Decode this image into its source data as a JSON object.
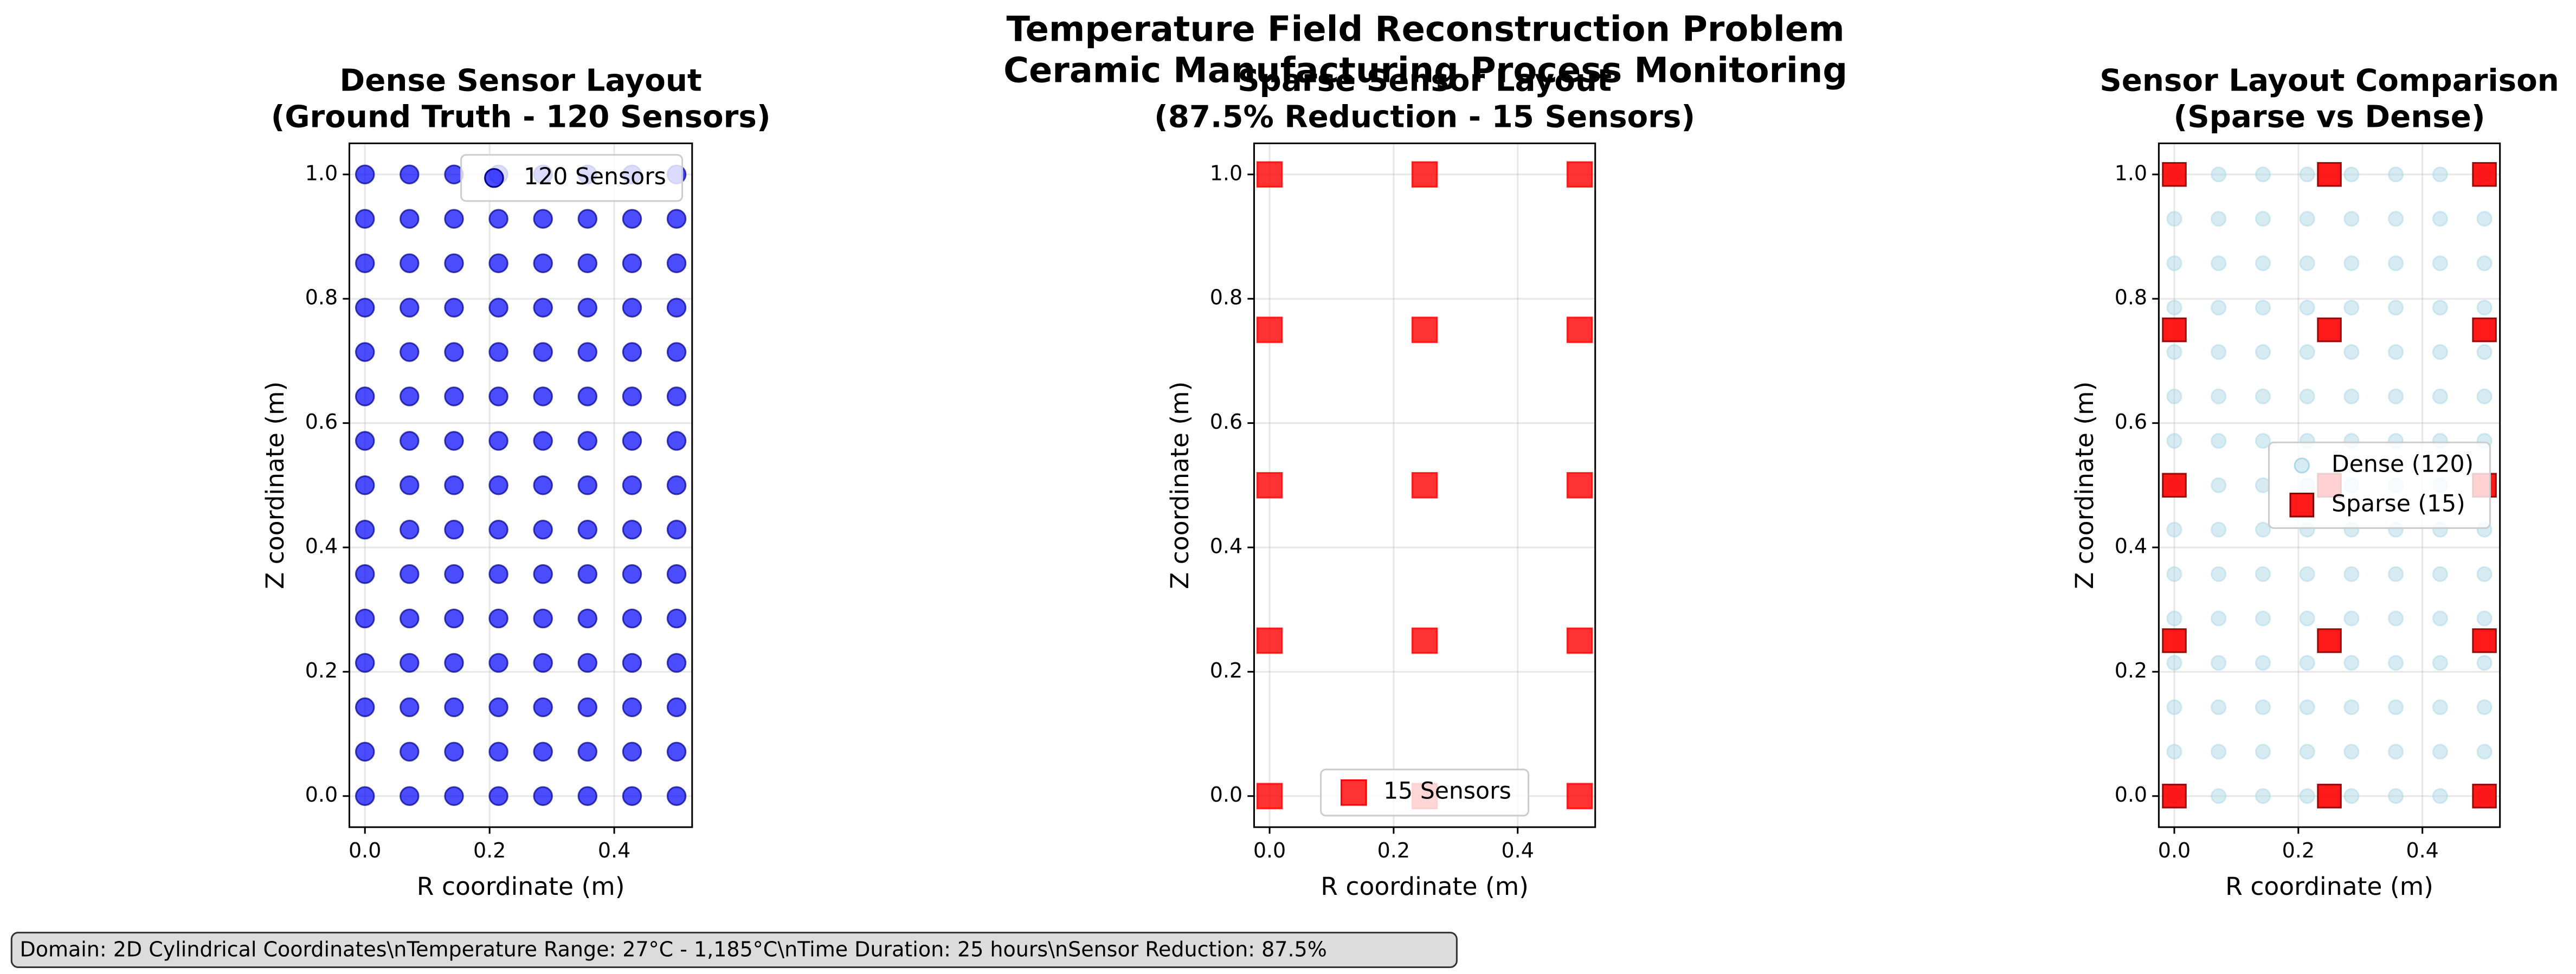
{
  "suptitle": [
    "Temperature Field Reconstruction Problem",
    "Ceramic Manufacturing Process Monitoring"
  ],
  "note": "Domain: 2D Cylindrical Coordinates\\nTemperature Range: 27°C - 1,185°C\\nTime Duration: 25 hours\\nSensor Reduction: 87.5%",
  "chart_data": [
    {
      "type": "scatter",
      "title": [
        "Dense Sensor Layout",
        "(Ground Truth - 120 Sensors)"
      ],
      "x_label": "R coordinate (m)",
      "y_label": "Z coordinate (m)",
      "xlim": [
        -0.025,
        0.525
      ],
      "ylim": [
        -0.05,
        1.05
      ],
      "xticks": [
        {
          "value": 0,
          "label": "0.0"
        },
        0.2,
        0.4
      ],
      "yticks": [
        {
          "value": 0,
          "label": "0.0"
        },
        0.2,
        0.4,
        0.6,
        0.8,
        {
          "value": 1,
          "label": "1.0"
        }
      ],
      "grid": true,
      "legend": "upper right",
      "series": [
        {
          "name": "120 Sensors",
          "color": "#0000ff",
          "edge": "#00008b",
          "alpha": 0.7,
          "marker": "circle",
          "size": 5.5,
          "x": [
            0,
            0.0714,
            0.1429,
            0.2143,
            0.2857,
            0.3571,
            0.4286,
            0.5,
            0,
            0.0714,
            0.1429,
            0.2143,
            0.2857,
            0.3571,
            0.4286,
            0.5,
            0,
            0.0714,
            0.1429,
            0.2143,
            0.2857,
            0.3571,
            0.4286,
            0.5,
            0,
            0.0714,
            0.1429,
            0.2143,
            0.2857,
            0.3571,
            0.4286,
            0.5,
            0,
            0.0714,
            0.1429,
            0.2143,
            0.2857,
            0.3571,
            0.4286,
            0.5,
            0,
            0.0714,
            0.1429,
            0.2143,
            0.2857,
            0.3571,
            0.4286,
            0.5,
            0,
            0.0714,
            0.1429,
            0.2143,
            0.2857,
            0.3571,
            0.4286,
            0.5,
            0,
            0.0714,
            0.1429,
            0.2143,
            0.2857,
            0.3571,
            0.4286,
            0.5,
            0,
            0.0714,
            0.1429,
            0.2143,
            0.2857,
            0.3571,
            0.4286,
            0.5,
            0,
            0.0714,
            0.1429,
            0.2143,
            0.2857,
            0.3571,
            0.4286,
            0.5,
            0,
            0.0714,
            0.1429,
            0.2143,
            0.2857,
            0.3571,
            0.4286,
            0.5,
            0,
            0.0714,
            0.1429,
            0.2143,
            0.2857,
            0.3571,
            0.4286,
            0.5,
            0,
            0.0714,
            0.1429,
            0.2143,
            0.2857,
            0.3571,
            0.4286,
            0.5,
            0,
            0.0714,
            0.1429,
            0.2143,
            0.2857,
            0.3571,
            0.4286,
            0.5,
            0,
            0.0714,
            0.1429,
            0.2143,
            0.2857,
            0.3571,
            0.4286,
            0.5
          ],
          "y": [
            0,
            0,
            0,
            0,
            0,
            0,
            0,
            0,
            0.0714,
            0.0714,
            0.0714,
            0.0714,
            0.0714,
            0.0714,
            0.0714,
            0.0714,
            0.1429,
            0.1429,
            0.1429,
            0.1429,
            0.1429,
            0.1429,
            0.1429,
            0.1429,
            0.2143,
            0.2143,
            0.2143,
            0.2143,
            0.2143,
            0.2143,
            0.2143,
            0.2143,
            0.2857,
            0.2857,
            0.2857,
            0.2857,
            0.2857,
            0.2857,
            0.2857,
            0.2857,
            0.3571,
            0.3571,
            0.3571,
            0.3571,
            0.3571,
            0.3571,
            0.3571,
            0.3571,
            0.4286,
            0.4286,
            0.4286,
            0.4286,
            0.4286,
            0.4286,
            0.4286,
            0.4286,
            0.5,
            0.5,
            0.5,
            0.5,
            0.5,
            0.5,
            0.5,
            0.5,
            0.5714,
            0.5714,
            0.5714,
            0.5714,
            0.5714,
            0.5714,
            0.5714,
            0.5714,
            0.6429,
            0.6429,
            0.6429,
            0.6429,
            0.6429,
            0.6429,
            0.6429,
            0.6429,
            0.7143,
            0.7143,
            0.7143,
            0.7143,
            0.7143,
            0.7143,
            0.7143,
            0.7143,
            0.7857,
            0.7857,
            0.7857,
            0.7857,
            0.7857,
            0.7857,
            0.7857,
            0.7857,
            0.8571,
            0.8571,
            0.8571,
            0.8571,
            0.8571,
            0.8571,
            0.8571,
            0.8571,
            0.9286,
            0.9286,
            0.9286,
            0.9286,
            0.9286,
            0.9286,
            0.9286,
            0.9286,
            1,
            1,
            1,
            1,
            1,
            1,
            1,
            1
          ]
        }
      ]
    },
    {
      "type": "scatter",
      "title": [
        "Sparse Sensor Layout",
        "(87.5% Reduction - 15 Sensors)"
      ],
      "x_label": "R coordinate (m)",
      "y_label": "Z coordinate (m)",
      "xlim": [
        -0.025,
        0.525
      ],
      "ylim": [
        -0.05,
        1.05
      ],
      "xticks": [
        {
          "value": 0,
          "label": "0.0"
        },
        0.2,
        0.4
      ],
      "yticks": [
        {
          "value": 0,
          "label": "0.0"
        },
        0.2,
        0.4,
        0.6,
        0.8,
        {
          "value": 1,
          "label": "1.0"
        }
      ],
      "grid": true,
      "legend": "lower center",
      "series": [
        {
          "name": "15 Sensors",
          "color": "#ff0000",
          "edge": "#ff0000",
          "alpha": 0.8,
          "marker": "square",
          "size": 7.5,
          "x": [
            0,
            0.25,
            0.5,
            0,
            0.25,
            0.5,
            0,
            0.25,
            0.5,
            0,
            0.25,
            0.5,
            0,
            0.25,
            0.5
          ],
          "y": [
            0,
            0,
            0,
            0.25,
            0.25,
            0.25,
            0.5,
            0.5,
            0.5,
            0.75,
            0.75,
            0.75,
            1,
            1,
            1
          ]
        }
      ]
    },
    {
      "type": "scatter",
      "title": [
        "Sensor Layout Comparison",
        "(Sparse vs Dense)"
      ],
      "x_label": "R coordinate (m)",
      "y_label": "Z coordinate (m)",
      "xlim": [
        -0.025,
        0.525
      ],
      "ylim": [
        -0.05,
        1.05
      ],
      "xticks": [
        {
          "value": 0,
          "label": "0.0"
        },
        0.2,
        0.4
      ],
      "yticks": [
        {
          "value": 0,
          "label": "0.0"
        },
        0.2,
        0.4,
        0.6,
        0.8,
        {
          "value": 1,
          "label": "1.0"
        }
      ],
      "grid": true,
      "legend": "center right",
      "series": [
        {
          "name": "Dense (120)",
          "color": "#add8e6",
          "edge": "#add8e6",
          "alpha": 0.5,
          "marker": "circle",
          "size": 4.3,
          "x": [
            0,
            0.0714,
            0.1429,
            0.2143,
            0.2857,
            0.3571,
            0.4286,
            0.5,
            0,
            0.0714,
            0.1429,
            0.2143,
            0.2857,
            0.3571,
            0.4286,
            0.5,
            0,
            0.0714,
            0.1429,
            0.2143,
            0.2857,
            0.3571,
            0.4286,
            0.5,
            0,
            0.0714,
            0.1429,
            0.2143,
            0.2857,
            0.3571,
            0.4286,
            0.5,
            0,
            0.0714,
            0.1429,
            0.2143,
            0.2857,
            0.3571,
            0.4286,
            0.5,
            0,
            0.0714,
            0.1429,
            0.2143,
            0.2857,
            0.3571,
            0.4286,
            0.5,
            0,
            0.0714,
            0.1429,
            0.2143,
            0.2857,
            0.3571,
            0.4286,
            0.5,
            0,
            0.0714,
            0.1429,
            0.2143,
            0.2857,
            0.3571,
            0.4286,
            0.5,
            0,
            0.0714,
            0.1429,
            0.2143,
            0.2857,
            0.3571,
            0.4286,
            0.5,
            0,
            0.0714,
            0.1429,
            0.2143,
            0.2857,
            0.3571,
            0.4286,
            0.5,
            0,
            0.0714,
            0.1429,
            0.2143,
            0.2857,
            0.3571,
            0.4286,
            0.5,
            0,
            0.0714,
            0.1429,
            0.2143,
            0.2857,
            0.3571,
            0.4286,
            0.5,
            0,
            0.0714,
            0.1429,
            0.2143,
            0.2857,
            0.3571,
            0.4286,
            0.5,
            0,
            0.0714,
            0.1429,
            0.2143,
            0.2857,
            0.3571,
            0.4286,
            0.5,
            0,
            0.0714,
            0.1429,
            0.2143,
            0.2857,
            0.3571,
            0.4286,
            0.5
          ],
          "y": [
            0,
            0,
            0,
            0,
            0,
            0,
            0,
            0,
            0.0714,
            0.0714,
            0.0714,
            0.0714,
            0.0714,
            0.0714,
            0.0714,
            0.0714,
            0.1429,
            0.1429,
            0.1429,
            0.1429,
            0.1429,
            0.1429,
            0.1429,
            0.1429,
            0.2143,
            0.2143,
            0.2143,
            0.2143,
            0.2143,
            0.2143,
            0.2143,
            0.2143,
            0.2857,
            0.2857,
            0.2857,
            0.2857,
            0.2857,
            0.2857,
            0.2857,
            0.2857,
            0.3571,
            0.3571,
            0.3571,
            0.3571,
            0.3571,
            0.3571,
            0.3571,
            0.3571,
            0.4286,
            0.4286,
            0.4286,
            0.4286,
            0.4286,
            0.4286,
            0.4286,
            0.4286,
            0.5,
            0.5,
            0.5,
            0.5,
            0.5,
            0.5,
            0.5,
            0.5,
            0.5714,
            0.5714,
            0.5714,
            0.5714,
            0.5714,
            0.5714,
            0.5714,
            0.5714,
            0.6429,
            0.6429,
            0.6429,
            0.6429,
            0.6429,
            0.6429,
            0.6429,
            0.6429,
            0.7143,
            0.7143,
            0.7143,
            0.7143,
            0.7143,
            0.7143,
            0.7143,
            0.7143,
            0.7857,
            0.7857,
            0.7857,
            0.7857,
            0.7857,
            0.7857,
            0.7857,
            0.7857,
            0.8571,
            0.8571,
            0.8571,
            0.8571,
            0.8571,
            0.8571,
            0.8571,
            0.8571,
            0.9286,
            0.9286,
            0.9286,
            0.9286,
            0.9286,
            0.9286,
            0.9286,
            0.9286,
            1,
            1,
            1,
            1,
            1,
            1,
            1,
            1
          ]
        },
        {
          "name": "Sparse (15)",
          "color": "#ff0000",
          "edge": "#8b0000",
          "alpha": 0.9,
          "marker": "square",
          "size": 7,
          "x": [
            0,
            0.25,
            0.5,
            0,
            0.25,
            0.5,
            0,
            0.25,
            0.5,
            0,
            0.25,
            0.5,
            0,
            0.25,
            0.5
          ],
          "y": [
            0,
            0,
            0,
            0.25,
            0.25,
            0.25,
            0.5,
            0.5,
            0.5,
            0.75,
            0.75,
            0.75,
            1,
            1,
            1
          ]
        }
      ]
    }
  ]
}
